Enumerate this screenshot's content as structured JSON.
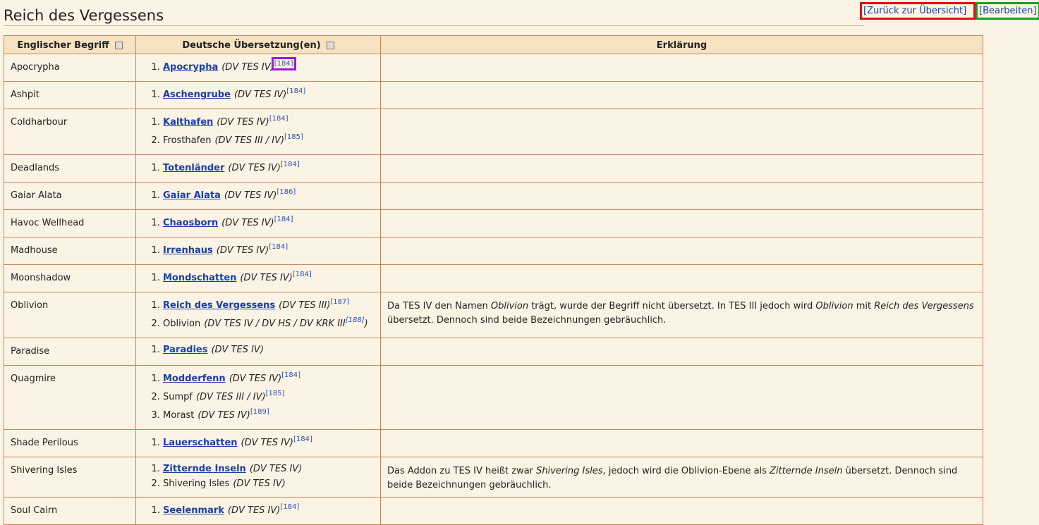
{
  "header": {
    "title": "Reich des Vergessens",
    "links": [
      "[Zurück zur Übersicht]",
      "[Bearbeiten]"
    ]
  },
  "table": {
    "columns": [
      "Englischer Begriff",
      "Deutsche Übersetzung(en)",
      "Erklärung"
    ],
    "rows": [
      {
        "term": "Apocrypha",
        "translations": [
          [
            {
              "text": "Apocrypha",
              "style": "link"
            },
            {
              "text": "(DV TES IV)",
              "style": "italic"
            },
            {
              "text": "[184]",
              "style": "ref"
            }
          ]
        ],
        "explanation": []
      },
      {
        "term": "Ashpit",
        "translations": [
          [
            {
              "text": "Aschengrube",
              "style": "link"
            },
            {
              "text": "(DV TES IV)",
              "style": "italic"
            },
            {
              "text": "[184]",
              "style": "ref"
            }
          ]
        ],
        "explanation": []
      },
      {
        "term": "Coldharbour",
        "translations": [
          [
            {
              "text": "Kalthafen",
              "style": "link"
            },
            {
              "text": "(DV TES IV)",
              "style": "italic"
            },
            {
              "text": "[184]",
              "style": "ref"
            }
          ],
          [
            {
              "text": "Frosthafen",
              "style": "plain"
            },
            {
              "text": "(DV TES III / IV)",
              "style": "italic"
            },
            {
              "text": "[185]",
              "style": "ref"
            }
          ]
        ],
        "explanation": []
      },
      {
        "term": "Deadlands",
        "translations": [
          [
            {
              "text": "Totenländer",
              "style": "link"
            },
            {
              "text": "(DV TES IV)",
              "style": "italic"
            },
            {
              "text": "[184]",
              "style": "ref"
            }
          ]
        ],
        "explanation": []
      },
      {
        "term": "Gaiar Alata",
        "translations": [
          [
            {
              "text": "Gaiar Alata",
              "style": "link"
            },
            {
              "text": "(DV TES IV)",
              "style": "italic"
            },
            {
              "text": "[186]",
              "style": "ref"
            }
          ]
        ],
        "explanation": []
      },
      {
        "term": "Havoc Wellhead",
        "translations": [
          [
            {
              "text": "Chaosborn",
              "style": "link"
            },
            {
              "text": "(DV TES IV)",
              "style": "italic"
            },
            {
              "text": "[184]",
              "style": "ref"
            }
          ]
        ],
        "explanation": []
      },
      {
        "term": "Madhouse",
        "translations": [
          [
            {
              "text": "Irrenhaus",
              "style": "link"
            },
            {
              "text": "(DV TES IV)",
              "style": "italic"
            },
            {
              "text": "[184]",
              "style": "ref"
            }
          ]
        ],
        "explanation": []
      },
      {
        "term": "Moonshadow",
        "translations": [
          [
            {
              "text": "Mondschatten",
              "style": "link"
            },
            {
              "text": "(DV TES IV)",
              "style": "italic"
            },
            {
              "text": "[184]",
              "style": "ref"
            }
          ]
        ],
        "explanation": []
      },
      {
        "term": "Oblivion",
        "translations": [
          [
            {
              "text": "Reich des Vergessens",
              "style": "link"
            },
            {
              "text": "(DV TES III)",
              "style": "italic"
            },
            {
              "text": "[187]",
              "style": "ref"
            }
          ],
          [
            {
              "text": "Oblivion",
              "style": "plain"
            },
            {
              "text": "(DV TES IV / DV HS / DV KRK III",
              "style": "italic"
            },
            {
              "text": "[188]",
              "style": "ref-italic"
            },
            {
              "text": ")",
              "style": "italic"
            }
          ]
        ],
        "explanation": [
          {
            "text": "Da TES IV den Namen ",
            "style": "plain"
          },
          {
            "text": "Oblivion",
            "style": "italic"
          },
          {
            "text": " trägt, wurde der Begriff nicht übersetzt. In TES III jedoch wird ",
            "style": "plain"
          },
          {
            "text": "Oblivion",
            "style": "italic"
          },
          {
            "text": " mit ",
            "style": "plain"
          },
          {
            "text": "Reich des Vergessens",
            "style": "italic"
          },
          {
            "text": " übersetzt. Dennoch sind beide Bezeichnungen gebräuchlich.",
            "style": "plain"
          }
        ]
      },
      {
        "term": "Paradise",
        "translations": [
          [
            {
              "text": "Paradies",
              "style": "link"
            },
            {
              "text": "(DV TES IV)",
              "style": "italic"
            }
          ]
        ],
        "explanation": []
      },
      {
        "term": "Quagmire",
        "translations": [
          [
            {
              "text": "Modderfenn",
              "style": "link"
            },
            {
              "text": "(DV TES IV)",
              "style": "italic"
            },
            {
              "text": "[184]",
              "style": "ref"
            }
          ],
          [
            {
              "text": "Sumpf",
              "style": "plain"
            },
            {
              "text": "(DV TES III / IV)",
              "style": "italic"
            },
            {
              "text": "[185]",
              "style": "ref"
            }
          ],
          [
            {
              "text": "Morast",
              "style": "plain"
            },
            {
              "text": "(DV TES IV)",
              "style": "italic"
            },
            {
              "text": "[189]",
              "style": "ref"
            }
          ]
        ],
        "explanation": []
      },
      {
        "term": "Shade Perilous",
        "translations": [
          [
            {
              "text": "Lauerschatten",
              "style": "link"
            },
            {
              "text": "(DV TES IV)",
              "style": "italic"
            },
            {
              "text": "[184]",
              "style": "ref"
            }
          ]
        ],
        "explanation": []
      },
      {
        "term": "Shivering Isles",
        "translations": [
          [
            {
              "text": "Zitternde Inseln",
              "style": "link"
            },
            {
              "text": "(DV TES IV)",
              "style": "italic"
            }
          ],
          [
            {
              "text": "Shivering Isles",
              "style": "plain"
            },
            {
              "text": "(DV TES IV)",
              "style": "italic"
            }
          ]
        ],
        "explanation": [
          {
            "text": "Das Addon zu TES IV heißt zwar ",
            "style": "plain"
          },
          {
            "text": "Shivering Isles",
            "style": "italic"
          },
          {
            "text": ", jedoch wird die Oblivion-Ebene als ",
            "style": "plain"
          },
          {
            "text": "Zitternde Inseln",
            "style": "italic"
          },
          {
            "text": " übersetzt. Dennoch sind beide Bezeichnungen gebräuchlich.",
            "style": "plain"
          }
        ]
      },
      {
        "term": "Soul Cairn",
        "translations": [
          [
            {
              "text": "Seelenmark",
              "style": "link"
            },
            {
              "text": "(DV TES IV)",
              "style": "italic"
            },
            {
              "text": "[184]",
              "style": "ref"
            }
          ]
        ],
        "explanation": []
      }
    ]
  }
}
